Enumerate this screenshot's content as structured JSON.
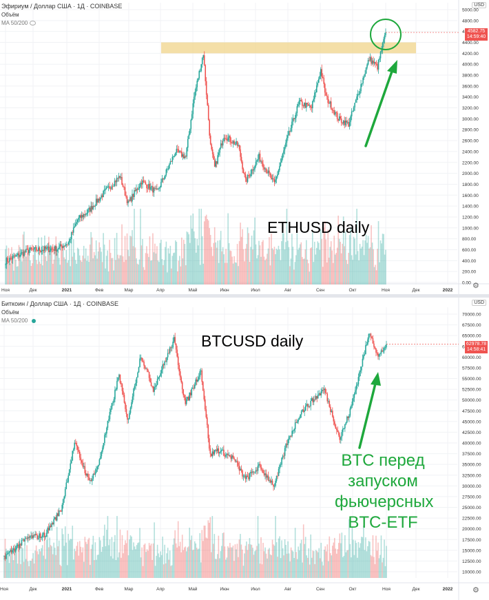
{
  "eth": {
    "legend_title": "Эфириум / Доллар США · 1Д · COINBASE",
    "volume_label": "Объём",
    "ma_label": "MA 50/200",
    "currency_button": "USD",
    "price_tag": "4582.75",
    "price_timer": "14:59:40",
    "big_label": "ETHUSD daily"
  },
  "btc": {
    "legend_title": "Биткоин / Доллар США · 1Д · COINBASE",
    "volume_label": "Объём",
    "ma_label": "MA 50/200",
    "currency_button": "USD",
    "price_tag": "62978.78",
    "price_timer": "14:58:41",
    "big_label": "BTCUSD daily",
    "annotation_lines": [
      "BTC перед",
      "запуском",
      "фьючерсных",
      "BTC-ETF"
    ]
  },
  "colors": {
    "up": "#26a69a",
    "down": "#ef5350",
    "annotation": "#1ea83c",
    "zone": "#f0d48a"
  },
  "icons": [
    "eye-icon",
    "gear-icon",
    "arrow-icon",
    "circle-highlight"
  ],
  "chart_data": [
    {
      "type": "candlestick",
      "title": "ETHUSD daily",
      "x_ticks": [
        "Ноя",
        "Дек",
        "2021",
        "Фев",
        "Мар",
        "Апр",
        "Май",
        "Июн",
        "Июл",
        "Авг",
        "Сен",
        "Окт",
        "Ноя",
        "Дек",
        "2022"
      ],
      "y_ticks": [
        "5000.00",
        "4800.00",
        "4600.00",
        "4400.00",
        "4200.00",
        "4000.00",
        "3800.00",
        "3600.00",
        "3400.00",
        "3200.00",
        "3000.00",
        "2800.00",
        "2600.00",
        "2400.00",
        "2200.00",
        "2000.00",
        "1800.00",
        "1600.00",
        "1400.00",
        "1200.00",
        "1000.00",
        "800.00",
        "600.00",
        "400.00",
        "200.00",
        "0.00"
      ],
      "ylim": [
        0,
        5000
      ],
      "anchors": [
        [
          "2020-11-01",
          390
        ],
        [
          "2020-11-24",
          590
        ],
        [
          "2020-12-21",
          620
        ],
        [
          "2021-01-01",
          730
        ],
        [
          "2021-01-10",
          1150
        ],
        [
          "2021-01-20",
          1300
        ],
        [
          "2021-02-05",
          1650
        ],
        [
          "2021-02-20",
          1950
        ],
        [
          "2021-02-28",
          1450
        ],
        [
          "2021-03-13",
          1850
        ],
        [
          "2021-03-28",
          1650
        ],
        [
          "2021-04-15",
          2400
        ],
        [
          "2021-04-25",
          2300
        ],
        [
          "2021-05-03",
          3400
        ],
        [
          "2021-05-12",
          4200
        ],
        [
          "2021-05-19",
          2500
        ],
        [
          "2021-05-23",
          2100
        ],
        [
          "2021-06-01",
          2700
        ],
        [
          "2021-06-15",
          2500
        ],
        [
          "2021-06-22",
          1850
        ],
        [
          "2021-07-05",
          2300
        ],
        [
          "2021-07-20",
          1800
        ],
        [
          "2021-08-01",
          2600
        ],
        [
          "2021-08-13",
          3300
        ],
        [
          "2021-08-25",
          3200
        ],
        [
          "2021-09-03",
          3900
        ],
        [
          "2021-09-08",
          3400
        ],
        [
          "2021-09-20",
          3000
        ],
        [
          "2021-09-30",
          2900
        ],
        [
          "2021-10-10",
          3500
        ],
        [
          "2021-10-20",
          4100
        ],
        [
          "2021-10-28",
          3950
        ],
        [
          "2021-11-05",
          4582
        ]
      ],
      "resistance_zone": [
        4200,
        4400
      ],
      "last_price": 4582.75
    },
    {
      "type": "candlestick",
      "title": "BTCUSD daily",
      "x_ticks": [
        "Ноя",
        "Дек",
        "2021",
        "Фев",
        "Мар",
        "Апр",
        "Май",
        "Июн",
        "Июл",
        "Авг",
        "Сен",
        "Окт",
        "Ноя",
        "Дек",
        "2022"
      ],
      "y_ticks": [
        "70000.00",
        "67500.00",
        "65000.00",
        "62500.00",
        "60000.00",
        "57500.00",
        "55000.00",
        "52500.00",
        "50000.00",
        "47500.00",
        "45000.00",
        "42500.00",
        "40000.00",
        "37500.00",
        "35000.00",
        "32500.00",
        "30000.00",
        "27500.00",
        "25000.00",
        "22500.00",
        "20000.00",
        "17500.00",
        "15000.00",
        "12500.00",
        "10000.00"
      ],
      "ylim": [
        10000,
        70000
      ],
      "anchors": [
        [
          "2020-11-01",
          13500
        ],
        [
          "2020-11-25",
          18000
        ],
        [
          "2020-12-10",
          18500
        ],
        [
          "2020-12-26",
          24500
        ],
        [
          "2021-01-08",
          40000
        ],
        [
          "2021-01-22",
          31000
        ],
        [
          "2021-01-30",
          34000
        ],
        [
          "2021-02-20",
          56000
        ],
        [
          "2021-02-28",
          45000
        ],
        [
          "2021-03-13",
          60500
        ],
        [
          "2021-03-25",
          52500
        ],
        [
          "2021-04-14",
          64000
        ],
        [
          "2021-04-25",
          49000
        ],
        [
          "2021-05-10",
          57000
        ],
        [
          "2021-05-19",
          37000
        ],
        [
          "2021-05-25",
          38500
        ],
        [
          "2021-06-10",
          36500
        ],
        [
          "2021-06-22",
          31500
        ],
        [
          "2021-07-05",
          34500
        ],
        [
          "2021-07-20",
          30000
        ],
        [
          "2021-08-01",
          40000
        ],
        [
          "2021-08-14",
          47000
        ],
        [
          "2021-08-22",
          49000
        ],
        [
          "2021-09-06",
          52500
        ],
        [
          "2021-09-21",
          41000
        ],
        [
          "2021-10-01",
          47500
        ],
        [
          "2021-10-20",
          66000
        ],
        [
          "2021-10-28",
          60000
        ],
        [
          "2021-11-05",
          62978
        ]
      ],
      "last_price": 62978.78
    }
  ]
}
